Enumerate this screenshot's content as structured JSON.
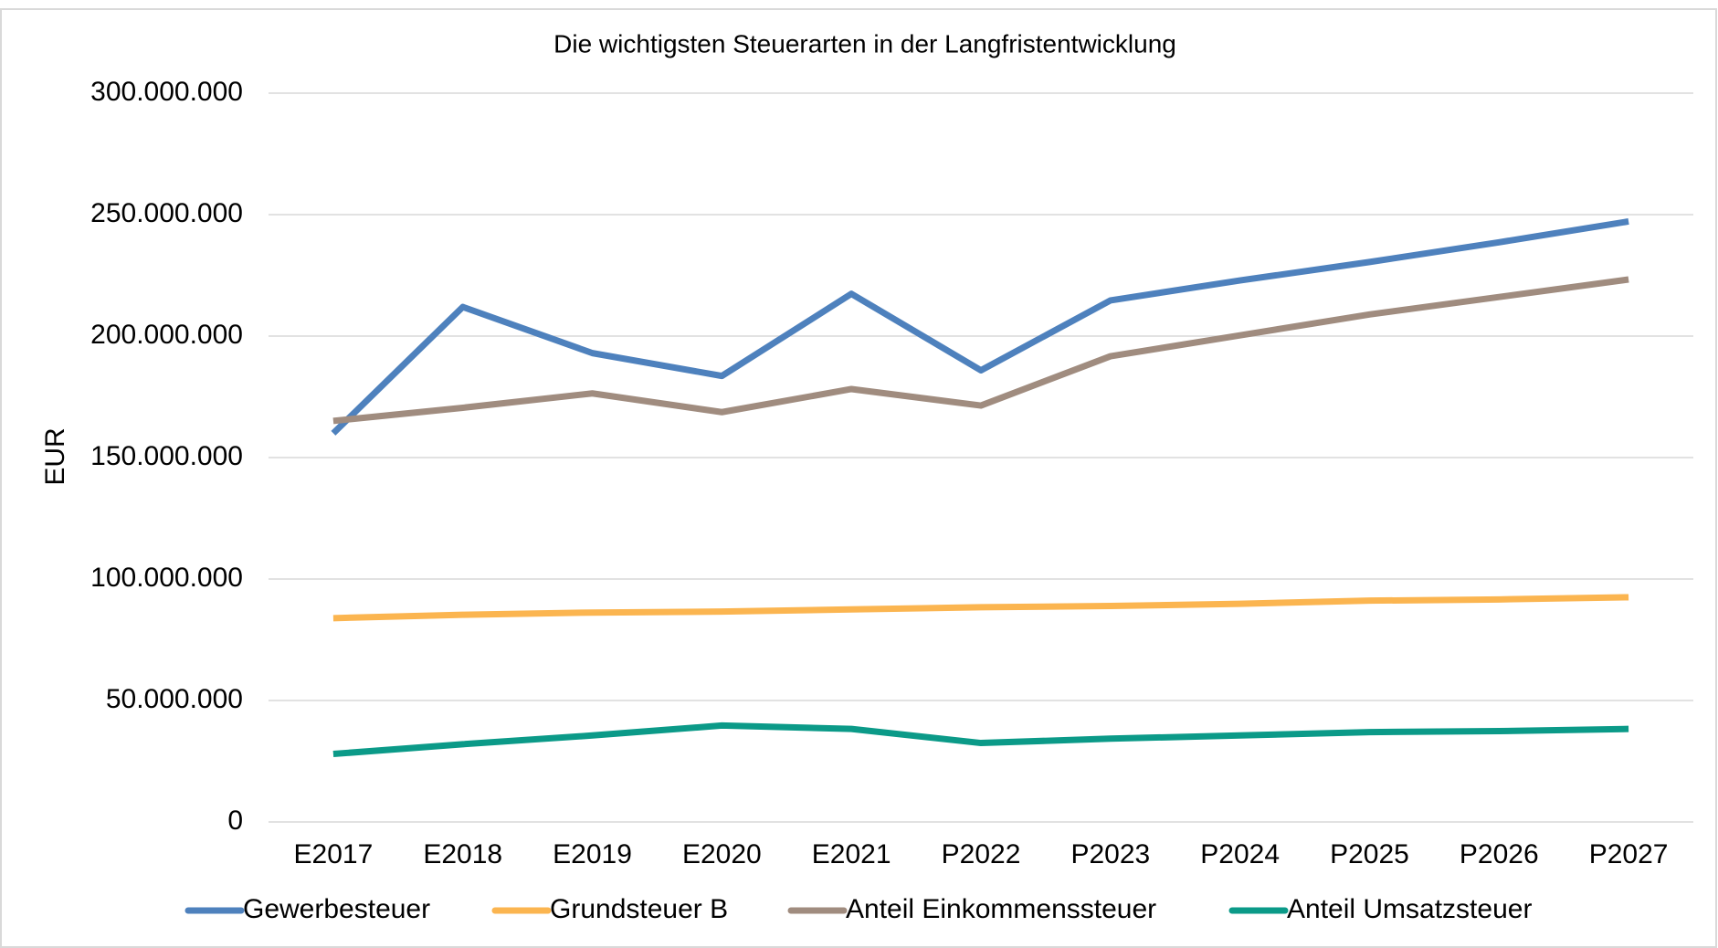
{
  "chart_data": {
    "type": "line",
    "title": "Die wichtigsten Steuerarten in der Langfristentwicklung",
    "y_label": "EUR",
    "categories": [
      "E2017",
      "E2018",
      "E2019",
      "E2020",
      "E2021",
      "P2022",
      "P2023",
      "P2024",
      "P2025",
      "P2026",
      "P2027"
    ],
    "series": [
      {
        "name": "Gewerbesteuer",
        "color": "#4e81bd",
        "values": [
          160000000,
          212000000,
          193000000,
          183600000,
          217400000,
          185900000,
          214700000,
          222900000,
          230500000,
          238600000,
          247200000
        ]
      },
      {
        "name": "Grundsteuer B",
        "color": "#fbb550",
        "values": [
          83900000,
          85300000,
          86200000,
          86600000,
          87500000,
          88400000,
          88900000,
          89800000,
          91100000,
          91600000,
          92500000
        ]
      },
      {
        "name": "Anteil Einkommenssteuer",
        "color": "#a08c7f",
        "values": [
          165100000,
          170500000,
          176400000,
          168700000,
          178200000,
          171400000,
          191700000,
          200300000,
          208900000,
          216100000,
          223300000
        ]
      },
      {
        "name": "Anteil Umsatzsteuer",
        "color": "#0b9a88",
        "values": [
          28000000,
          32000000,
          35600000,
          39700000,
          38300000,
          32500000,
          34300000,
          35600000,
          37000000,
          37400000,
          38300000
        ]
      }
    ],
    "ylim": [
      0,
      300000000
    ],
    "yticks": [
      0,
      {
        "value": 50000000,
        "label": "50.000.000"
      },
      {
        "value": 100000000,
        "label": "100.000.000"
      },
      {
        "value": 150000000,
        "label": "150.000.000"
      },
      {
        "value": 200000000,
        "label": "200.000.000"
      },
      {
        "value": 250000000,
        "label": "250.000.000"
      },
      {
        "value": 300000000,
        "label": "300.000.000"
      }
    ],
    "grid": true,
    "legend": "bottom"
  }
}
